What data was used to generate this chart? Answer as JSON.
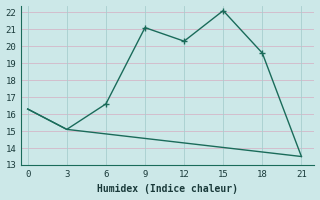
{
  "line1_x": [
    0,
    3,
    6,
    9,
    12,
    15,
    18,
    21
  ],
  "line1_y": [
    16.3,
    15.1,
    16.6,
    21.1,
    20.3,
    22.1,
    19.6,
    13.5
  ],
  "line1_marker_x": [
    6,
    9,
    12,
    15,
    18
  ],
  "line1_marker_y": [
    16.6,
    21.1,
    20.3,
    22.1,
    19.6
  ],
  "line2_x": [
    0,
    3,
    21
  ],
  "line2_y": [
    16.3,
    15.1,
    13.5
  ],
  "line_color": "#1a6b5a",
  "bg_color": "#cce8e8",
  "grid_color_major": "#c8b8c8",
  "grid_color_minor": "#b8d8d8",
  "xlabel": "Humidex (Indice chaleur)",
  "xlim": [
    -0.5,
    22
  ],
  "ylim": [
    13,
    22.4
  ],
  "xticks": [
    0,
    3,
    6,
    9,
    12,
    15,
    18,
    21
  ],
  "yticks": [
    13,
    14,
    15,
    16,
    17,
    18,
    19,
    20,
    21,
    22
  ],
  "marker": "+",
  "marker_size": 5,
  "linewidth": 1.0
}
